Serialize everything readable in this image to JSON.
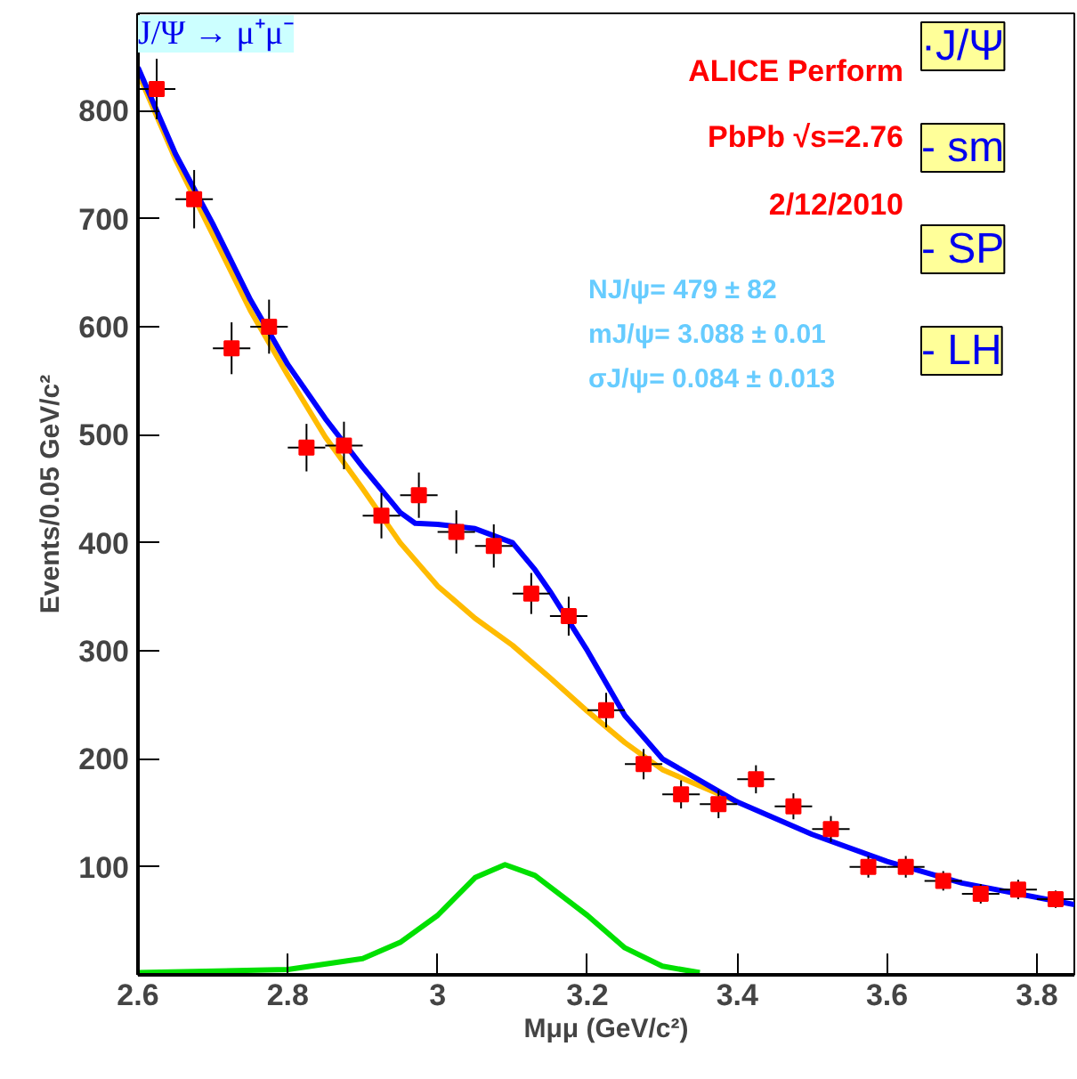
{
  "chart_data": {
    "type": "scatter",
    "xlabel": "Mμμ (GeV/c²)",
    "ylabel": "Events/0.05 GeV/c²",
    "xlim": [
      2.6,
      3.85
    ],
    "ylim": [
      0,
      890
    ],
    "xticks": [
      2.6,
      2.8,
      3,
      3.2,
      3.4,
      3.6,
      3.8
    ],
    "yticks": [
      100,
      200,
      300,
      400,
      500,
      600,
      700,
      800
    ],
    "grid": false,
    "annotations": [
      "ALICE Perform",
      "PbPb √s=2.76",
      "2/12/2010",
      "NJ/ψ= 479 ± 82",
      "mJ/ψ= 3.088 ± 0.01",
      "σJ/ψ= 0.084 ± 0.013",
      "J/Ψ → μ⁺μ⁻",
      "·J/Ψ",
      "- sm",
      "- SP",
      "- LH"
    ],
    "series": [
      {
        "marker": "square",
        "color": "#ff0000",
        "x": [
          2.625,
          2.675,
          2.725,
          2.775,
          2.825,
          2.875,
          2.925,
          2.975,
          3.025,
          3.075,
          3.125,
          3.175,
          3.225,
          3.275,
          3.325,
          3.375,
          3.425,
          3.475,
          3.525,
          3.575,
          3.625,
          3.675,
          3.725,
          3.775,
          3.825
        ],
        "values": [
          820,
          718,
          580,
          600,
          488,
          490,
          425,
          444,
          410,
          397,
          353,
          332,
          245,
          195,
          167,
          158,
          181,
          156,
          135,
          100,
          100,
          87,
          75,
          79,
          70
        ],
        "errors": [
          28,
          27,
          24,
          25,
          22,
          22,
          21,
          21,
          20,
          20,
          19,
          18,
          16,
          14,
          13,
          13,
          13,
          12,
          12,
          10,
          10,
          9,
          9,
          9,
          8
        ],
        "xerrors": [
          0.025,
          0.025,
          0.025,
          0.025,
          0.025,
          0.025,
          0.025,
          0.025,
          0.025,
          0.025,
          0.025,
          0.025,
          0.025,
          0.025,
          0.025,
          0.025,
          0.025,
          0.025,
          0.025,
          0.025,
          0.025,
          0.025,
          0.025,
          0.025,
          0.025
        ]
      },
      {
        "type": "line",
        "color": "#ffbb00",
        "x": [
          2.6,
          2.65,
          2.7,
          2.75,
          2.8,
          2.85,
          2.9,
          2.95,
          3.0,
          3.05,
          3.1,
          3.15,
          3.2,
          3.25,
          3.3,
          3.35,
          3.4
        ],
        "values": [
          835,
          755,
          685,
          615,
          555,
          498,
          450,
          400,
          360,
          330,
          305,
          275,
          244,
          215,
          190,
          175,
          160
        ]
      },
      {
        "type": "line",
        "color": "#00e000",
        "x": [
          2.6,
          2.8,
          2.9,
          2.95,
          3.0,
          3.05,
          3.09,
          3.13,
          3.2,
          3.25,
          3.3,
          3.35
        ],
        "values": [
          2,
          5,
          15,
          30,
          55,
          90,
          102,
          92,
          55,
          25,
          8,
          2
        ]
      },
      {
        "type": "line",
        "color": "#0000ff",
        "x": [
          2.6,
          2.65,
          2.7,
          2.75,
          2.8,
          2.85,
          2.9,
          2.95,
          2.97,
          3.0,
          3.05,
          3.1,
          3.13,
          3.15,
          3.2,
          3.25,
          3.3,
          3.35,
          3.4,
          3.5,
          3.6,
          3.7,
          3.85
        ],
        "values": [
          840,
          760,
          695,
          625,
          565,
          515,
          470,
          428,
          418,
          417,
          413,
          400,
          375,
          355,
          300,
          240,
          200,
          180,
          160,
          130,
          105,
          85,
          65
        ]
      }
    ]
  }
}
